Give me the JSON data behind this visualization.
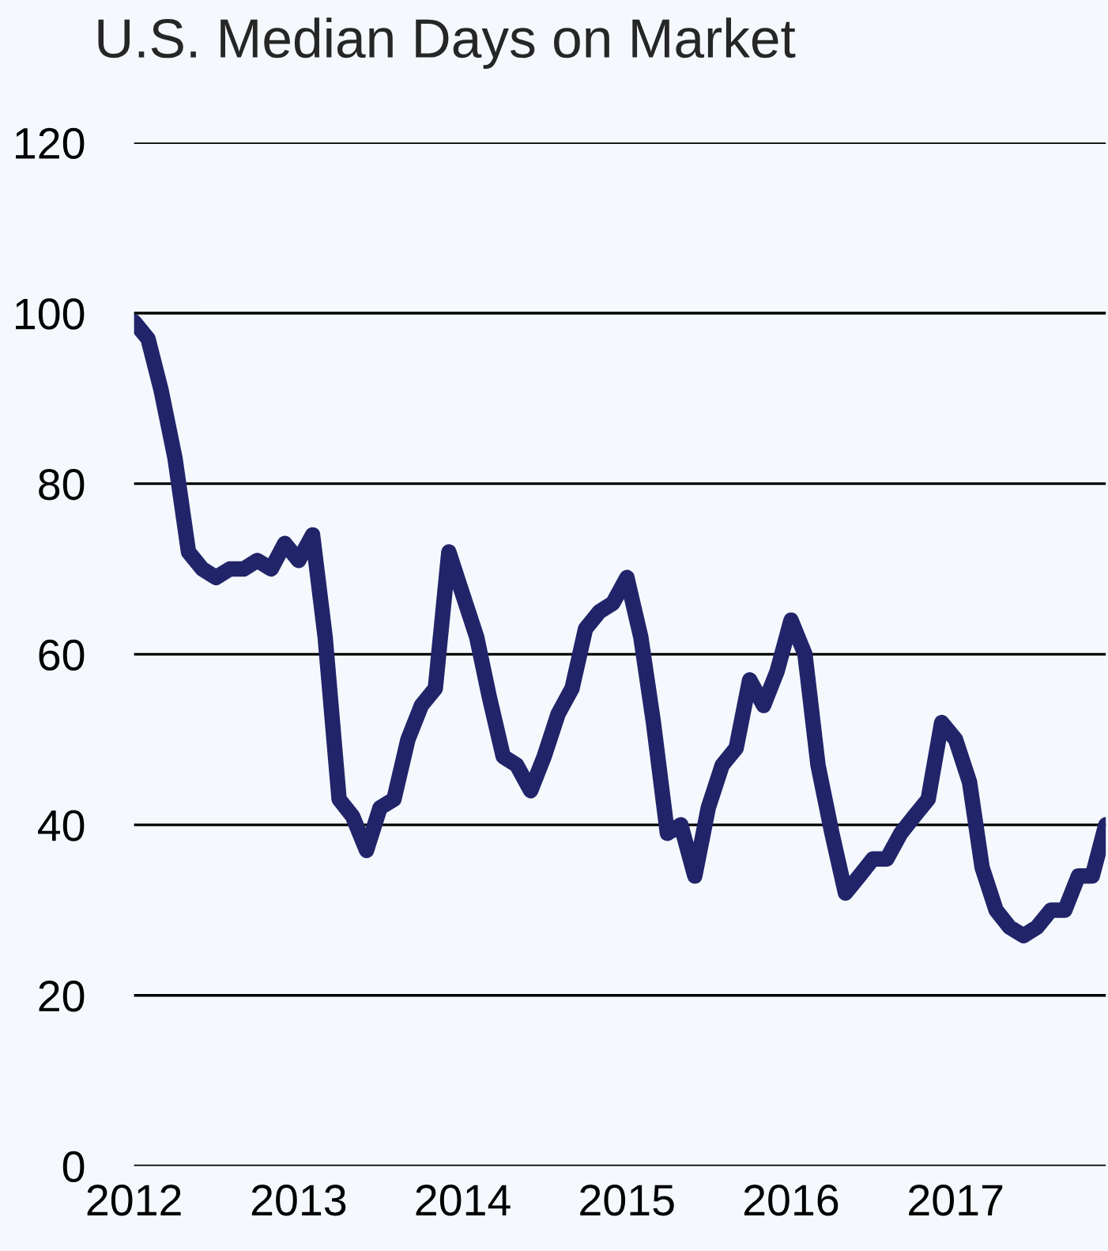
{
  "chart_data": {
    "type": "line",
    "title": "U.S. Median Days on Market",
    "x": [
      "2012-01",
      "2012-02",
      "2012-03",
      "2012-04",
      "2012-05",
      "2012-06",
      "2012-07",
      "2012-08",
      "2012-09",
      "2012-10",
      "2012-11",
      "2012-12",
      "2013-01",
      "2013-02",
      "2013-03",
      "2013-04",
      "2013-05",
      "2013-06",
      "2013-07",
      "2013-08",
      "2013-09",
      "2013-10",
      "2013-11",
      "2013-12",
      "2014-01",
      "2014-02",
      "2014-03",
      "2014-04",
      "2014-05",
      "2014-06",
      "2014-07",
      "2014-08",
      "2014-09",
      "2014-10",
      "2014-11",
      "2014-12",
      "2015-01",
      "2015-02",
      "2015-03",
      "2015-04",
      "2015-05",
      "2015-06",
      "2015-07",
      "2015-08",
      "2015-09",
      "2015-10",
      "2015-11",
      "2015-12",
      "2016-01",
      "2016-02",
      "2016-03",
      "2016-04",
      "2016-05",
      "2016-06",
      "2016-07",
      "2016-08",
      "2016-09",
      "2016-10",
      "2016-11",
      "2016-12",
      "2017-01",
      "2017-02",
      "2017-03",
      "2017-04",
      "2017-05",
      "2017-06",
      "2017-07",
      "2017-08",
      "2017-09",
      "2017-10",
      "2017-11",
      "2017-12"
    ],
    "series": [
      {
        "color": "#22246a",
        "values": [
          99,
          97,
          91,
          83,
          72,
          70,
          69,
          70,
          70,
          71,
          70,
          73,
          71,
          74,
          62,
          43,
          41,
          37,
          42,
          43,
          50,
          54,
          56,
          72,
          67,
          62,
          55,
          48,
          47,
          44,
          48,
          53,
          56,
          63,
          65,
          66,
          69,
          62,
          52,
          39,
          40,
          34,
          42,
          47,
          49,
          57,
          54,
          58,
          64,
          60,
          47,
          39,
          32,
          34,
          36,
          36,
          39,
          41,
          43,
          52,
          50,
          45,
          35,
          30,
          28,
          27,
          28,
          30,
          30,
          34,
          34,
          40
        ]
      }
    ],
    "xlim": [
      "2012-01",
      "2017-12"
    ],
    "xticks": [
      {
        "value": "2012-01",
        "label": "2012"
      },
      {
        "value": "2013-01",
        "label": "2013"
      },
      {
        "value": "2014-01",
        "label": "2014"
      },
      {
        "value": "2015-01",
        "label": "2015"
      },
      {
        "value": "2016-01",
        "label": "2016"
      },
      {
        "value": "2017-01",
        "label": "2017"
      }
    ],
    "ylim": [
      0,
      120
    ],
    "yticks": [
      0,
      20,
      40,
      60,
      80,
      100,
      120
    ],
    "grid": "y",
    "marker": "none",
    "line_style": "solid"
  }
}
